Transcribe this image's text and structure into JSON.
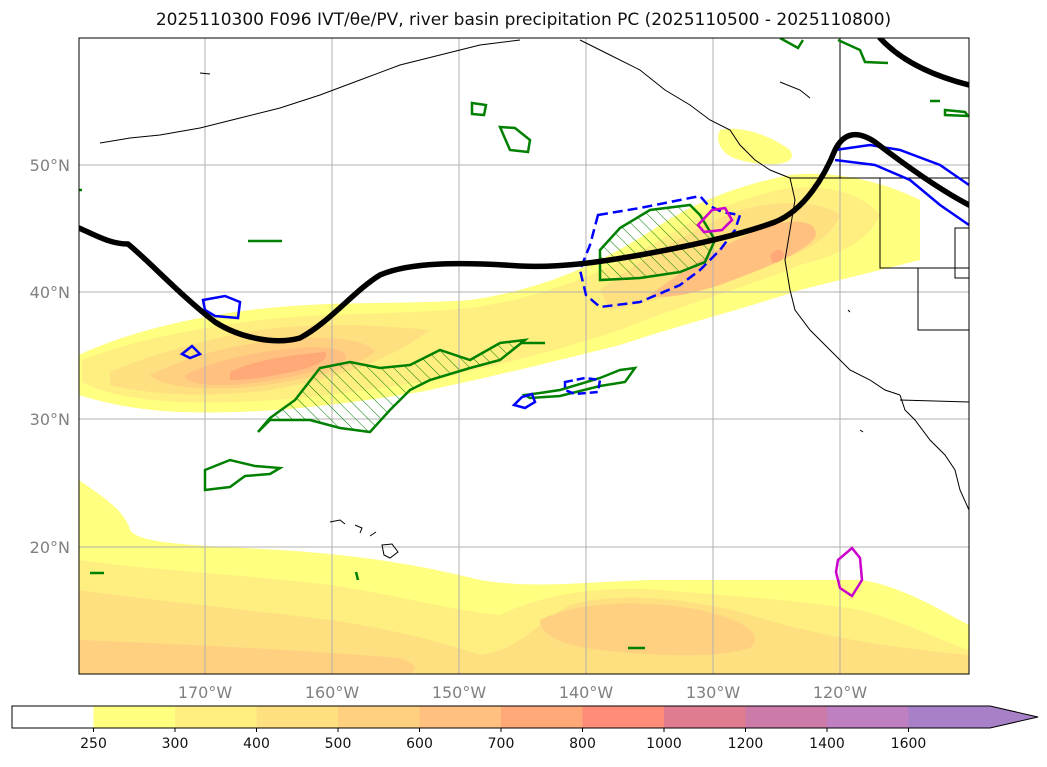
{
  "title": "2025110300 F096 IVT/θe/PV, river basin precipitation PC (2025110500 - 2025110800)",
  "map": {
    "lat_labels": [
      "50°N",
      "40°N",
      "30°N",
      "20°N"
    ],
    "lon_labels": [
      "170°W",
      "160°W",
      "150°W",
      "140°W",
      "130°W",
      "120°W"
    ]
  },
  "colorbar": {
    "ticks": [
      "250",
      "300",
      "400",
      "500",
      "600",
      "700",
      "800",
      "1000",
      "1200",
      "1400",
      "1600"
    ],
    "colors": [
      "#ffffff",
      "#ffff80",
      "#ffef80",
      "#ffe080",
      "#ffd080",
      "#ffc080",
      "#ffa878",
      "#ff8c78",
      "#e07c90",
      "#cc7aa8",
      "#be80c0",
      "#a880c8"
    ],
    "extend": "max"
  },
  "colors": {
    "grid": "#b0b0b0",
    "coast": "#000000",
    "theta_e": "#000000",
    "pv_blue": "#0000ff",
    "precip_green": "#008000",
    "magenta": "#cc00cc"
  }
}
